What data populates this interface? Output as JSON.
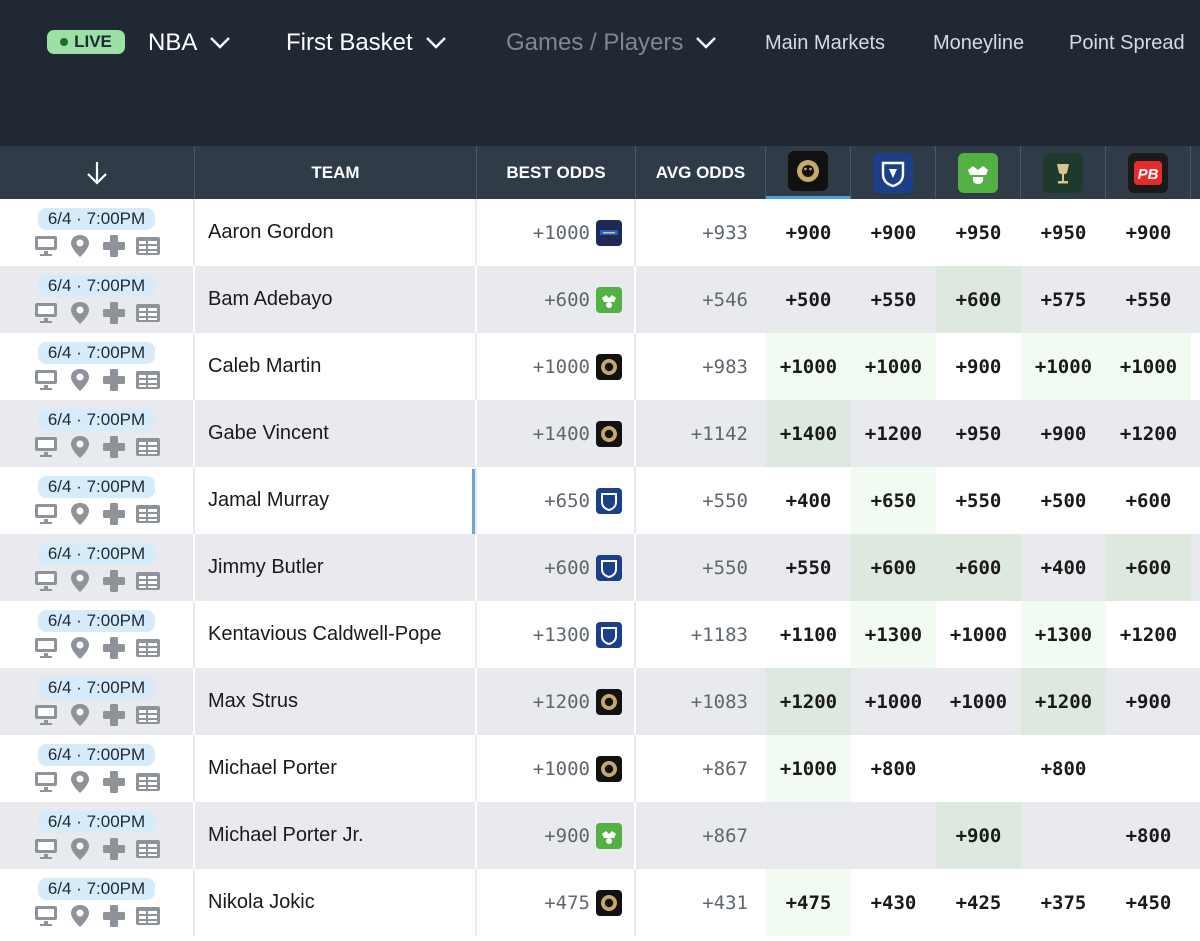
{
  "nav": {
    "live_label": "LIVE",
    "league": "NBA",
    "market": "First Basket",
    "view": "Games / Players",
    "links": [
      "Main Markets",
      "Moneyline",
      "Point Spread"
    ]
  },
  "columns": {
    "sort_icon": "arrow-down-icon",
    "team": "TEAM",
    "best": "BEST ODDS",
    "avg": "AVG ODDS",
    "books": [
      {
        "name": "betmgm",
        "icon": "lion-icon",
        "bg": "#111111",
        "fg": "#c8a866",
        "glyph": "🦁"
      },
      {
        "name": "fanduel",
        "icon": "shield-icon",
        "bg": "#1c3f8a",
        "fg": "#ffffff",
        "glyph": ""
      },
      {
        "name": "draftkings",
        "icon": "crown-icon",
        "bg": "#53b043",
        "fg": "#ffffff",
        "glyph": ""
      },
      {
        "name": "caesars",
        "icon": "goblet-icon",
        "bg": "#1e3a2c",
        "fg": "#d6c58c",
        "glyph": "🏆"
      },
      {
        "name": "pointsbet",
        "icon": "pb-icon",
        "bg": "#e62b2b",
        "fg": "#ffffff",
        "glyph": "PB"
      }
    ]
  },
  "colors": {
    "betmgm": "#111111",
    "fanduel": "#1c3f8a",
    "draftkings": "#53b043",
    "barstool": "#1e2a55"
  },
  "rows": [
    {
      "date": "6/4 · 7:00PM",
      "team": "Aaron Gordon",
      "best": "+1000",
      "best_book": "barstool",
      "avg": "+933",
      "odds": [
        "+900",
        "+900",
        "+950",
        "+950",
        "+900"
      ],
      "hl": [
        "",
        "",
        "",
        "",
        ""
      ]
    },
    {
      "date": "6/4 · 7:00PM",
      "team": "Bam Adebayo",
      "best": "+600",
      "best_book": "draftkings",
      "avg": "+546",
      "odds": [
        "+500",
        "+550",
        "+600",
        "+575",
        "+550"
      ],
      "hl": [
        "",
        "",
        "g",
        "",
        ""
      ]
    },
    {
      "date": "6/4 · 7:00PM",
      "team": "Caleb Martin",
      "best": "+1000",
      "best_book": "betmgm",
      "avg": "+983",
      "odds": [
        "+1000",
        "+1000",
        "+900",
        "+1000",
        "+1000"
      ],
      "hl": [
        "w",
        "w",
        "",
        "w",
        "w"
      ]
    },
    {
      "date": "6/4 · 7:00PM",
      "team": "Gabe Vincent",
      "best": "+1400",
      "best_book": "betmgm",
      "avg": "+1142",
      "odds": [
        "+1400",
        "+1200",
        "+950",
        "+900",
        "+1200"
      ],
      "hl": [
        "g",
        "",
        "",
        "",
        ""
      ]
    },
    {
      "date": "6/4 · 7:00PM",
      "team": "Jamal Murray",
      "best": "+650",
      "best_book": "fanduel",
      "avg": "+550",
      "odds": [
        "+400",
        "+650",
        "+550",
        "+500",
        "+600"
      ],
      "hl": [
        "",
        "w",
        "",
        "",
        ""
      ]
    },
    {
      "date": "6/4 · 7:00PM",
      "team": "Jimmy Butler",
      "best": "+600",
      "best_book": "fanduel",
      "avg": "+550",
      "odds": [
        "+550",
        "+600",
        "+600",
        "+400",
        "+600"
      ],
      "hl": [
        "",
        "g",
        "g",
        "",
        "g"
      ]
    },
    {
      "date": "6/4 · 7:00PM",
      "team": "Kentavious Caldwell-Pope",
      "best": "+1300",
      "best_book": "fanduel",
      "avg": "+1183",
      "odds": [
        "+1100",
        "+1300",
        "+1000",
        "+1300",
        "+1200"
      ],
      "hl": [
        "",
        "w",
        "",
        "w",
        ""
      ]
    },
    {
      "date": "6/4 · 7:00PM",
      "team": "Max Strus",
      "best": "+1200",
      "best_book": "betmgm",
      "avg": "+1083",
      "odds": [
        "+1200",
        "+1000",
        "+1000",
        "+1200",
        "+900"
      ],
      "hl": [
        "g",
        "",
        "",
        "g",
        ""
      ]
    },
    {
      "date": "6/4 · 7:00PM",
      "team": "Michael Porter",
      "best": "+1000",
      "best_book": "betmgm",
      "avg": "+867",
      "odds": [
        "+1000",
        "+800",
        "",
        "+800",
        ""
      ],
      "hl": [
        "w",
        "",
        "",
        "",
        ""
      ]
    },
    {
      "date": "6/4 · 7:00PM",
      "team": "Michael Porter Jr.",
      "best": "+900",
      "best_book": "draftkings",
      "avg": "+867",
      "odds": [
        "",
        "",
        "+900",
        "",
        "+800"
      ],
      "hl": [
        "",
        "",
        "g",
        "",
        ""
      ]
    },
    {
      "date": "6/4 · 7:00PM",
      "team": "Nikola Jokic",
      "best": "+475",
      "best_book": "betmgm",
      "avg": "+431",
      "odds": [
        "+475",
        "+430",
        "+425",
        "+375",
        "+450"
      ],
      "hl": [
        "w",
        "",
        "",
        "",
        ""
      ]
    }
  ]
}
